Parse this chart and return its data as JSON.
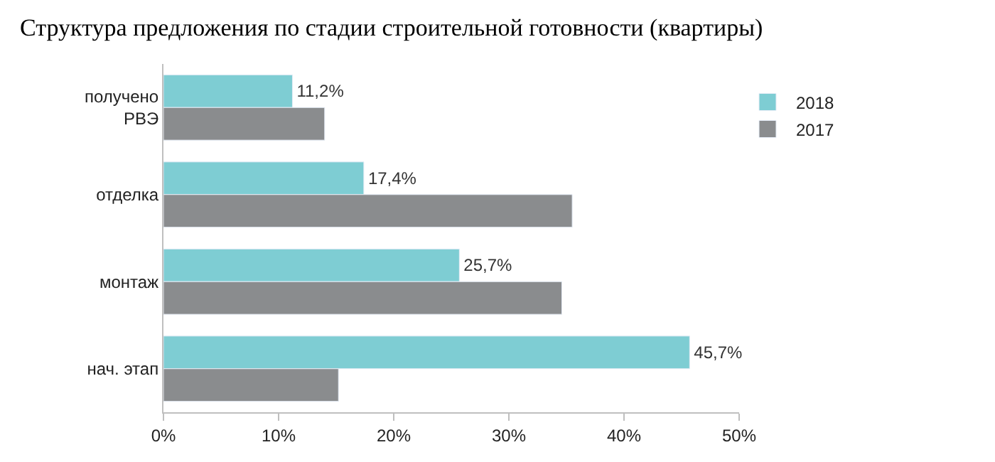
{
  "chart_data": {
    "type": "bar",
    "orientation": "horizontal",
    "title": "Структура предложения по стадии строительной готовности (квартиры)",
    "categories": [
      "получено\nРВЭ",
      "отделка",
      "монтаж",
      "нач. этап"
    ],
    "series": [
      {
        "name": "2018",
        "color": "#7ecdd3",
        "values": [
          11.2,
          17.4,
          25.7,
          45.7
        ],
        "value_labels": [
          "11,2%",
          "17,4%",
          "25,7%",
          "45,7%"
        ]
      },
      {
        "name": "2017",
        "color": "#8a8c8e",
        "values": [
          14.0,
          35.5,
          34.6,
          15.2
        ]
      }
    ],
    "xlim": [
      0,
      50
    ],
    "xticks": [
      {
        "value": 0,
        "label": "0%"
      },
      {
        "value": 10,
        "label": "10%"
      },
      {
        "value": 20,
        "label": "20%"
      },
      {
        "value": 30,
        "label": "30%"
      },
      {
        "value": 40,
        "label": "40%"
      },
      {
        "value": 50,
        "label": "50%"
      }
    ],
    "grid": false,
    "legend": "top right"
  }
}
